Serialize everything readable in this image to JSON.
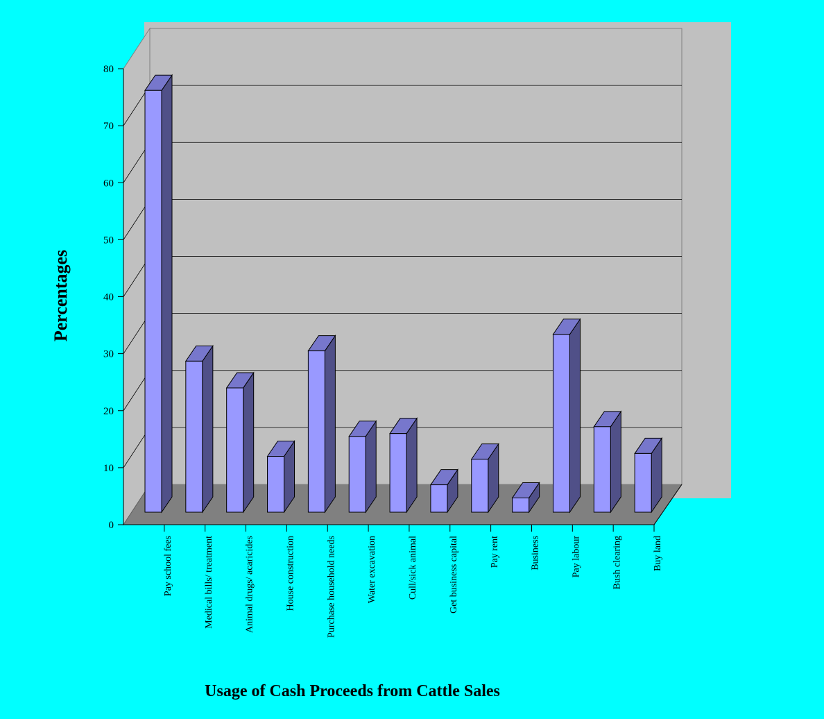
{
  "chart_data": {
    "type": "bar",
    "style": "3d",
    "categories": [
      "Pay school fees",
      "Medical bills/ treatment",
      "Animal drugs/ acaricides",
      "House construction",
      "Purchase household needs",
      "Water excavation",
      "Cull/sick animal",
      "Get business capital",
      "Pay rent",
      "Business",
      "Pay labour",
      "Bush clearing",
      "Buy land"
    ],
    "values": [
      74,
      26.5,
      21.8,
      9.8,
      28.3,
      13.3,
      13.8,
      4.8,
      9.3,
      2.5,
      31.2,
      15,
      10.3
    ],
    "xlabel": "Usage of Cash Proceeds from Cattle Sales",
    "ylabel": "Percentages",
    "ylim": [
      0,
      80
    ],
    "yticks": [
      "0",
      "10",
      "20",
      "30",
      "40",
      "50",
      "60",
      "70",
      "80"
    ],
    "grid": true,
    "legend": "none",
    "colors": {
      "background": "#00ffff",
      "back_wall": "#c0c0c0",
      "floor": "#808080",
      "bar_front": "#9999ff",
      "bar_side": "#505088",
      "bar_top": "#7777cc",
      "grid": "#000000"
    }
  }
}
